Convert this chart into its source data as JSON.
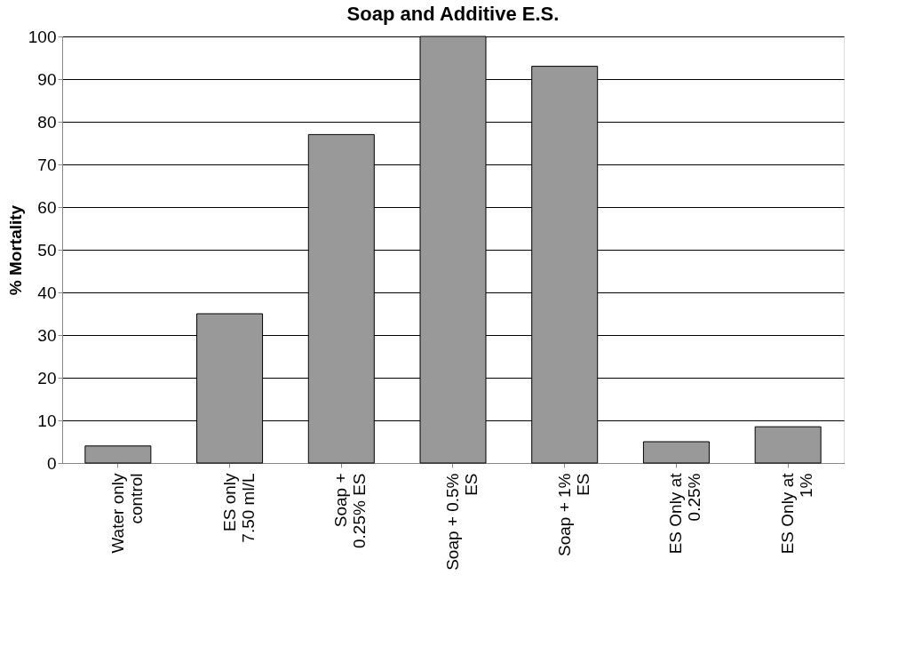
{
  "chart_data": {
    "type": "bar",
    "title": "Soap and Additive E.S.",
    "ylabel": "% Mortality",
    "categories": [
      "Water only\ncontrol",
      "ES only\n7.50 ml/L",
      "Soap +\n0.25% ES",
      "Soap + 0.5%\nES",
      "Soap + 1%\nES",
      "ES Only at\n0.25%",
      "ES Only at\n1%"
    ],
    "values": [
      4,
      35,
      77,
      100,
      93,
      5,
      8.5
    ],
    "color": "#999999",
    "ylim": [
      0,
      100
    ],
    "yticks": [
      0,
      10,
      20,
      30,
      40,
      50,
      60,
      70,
      80,
      90,
      100
    ],
    "grid": "y"
  }
}
